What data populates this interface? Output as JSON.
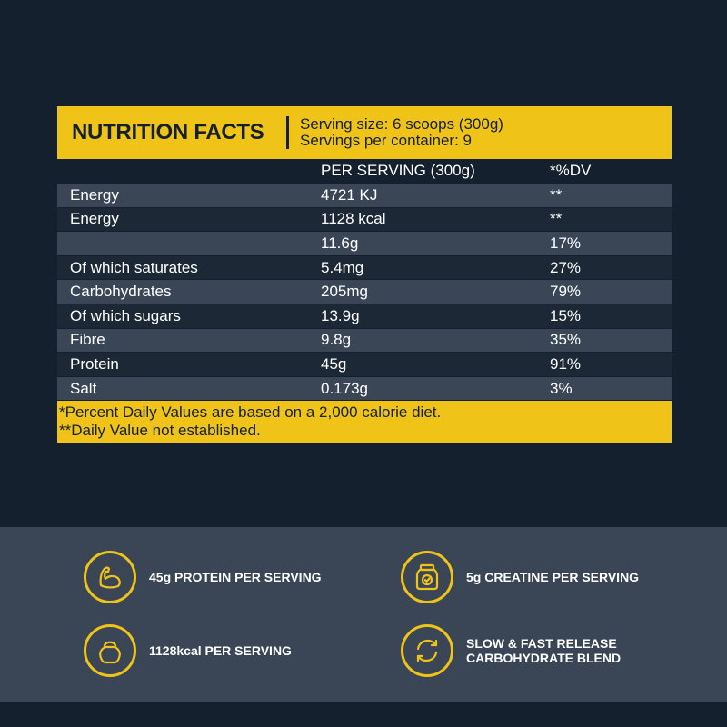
{
  "nutrition": {
    "title": "NUTRITION FACTS",
    "serving_size": "Serving size: 6 scoops (300g)",
    "servings_per_container": "Servings per container: 9",
    "col_per_serving": "PER SERVING (300g)",
    "col_dv": "*%DV",
    "rows": [
      {
        "label": "Energy",
        "value": "4721 KJ",
        "dv": "**"
      },
      {
        "label": "Energy",
        "value": "1128 kcal",
        "dv": "**"
      },
      {
        "label": "",
        "value": "11.6g",
        "dv": "17%"
      },
      {
        "label": "Of which saturates",
        "value": "5.4mg",
        "dv": "27%"
      },
      {
        "label": "Carbohydrates",
        "value": "205mg",
        "dv": "79%"
      },
      {
        "label": "Of which sugars",
        "value": "13.9g",
        "dv": "15%"
      },
      {
        "label": "Fibre",
        "value": "9.8g",
        "dv": "35%"
      },
      {
        "label": "Protein",
        "value": "45g",
        "dv": "91%"
      },
      {
        "label": "Salt",
        "value": "0.173g",
        "dv": "3%"
      }
    ],
    "footnote1": "*Percent Daily Values are based on a 2,000 calorie diet.",
    "footnote2": "**Daily Value not established."
  },
  "features": [
    {
      "icon": "muscle-arm-icon",
      "text": "45g PROTEIN PER SERVING"
    },
    {
      "icon": "supplement-jar-icon",
      "text": "5g CREATINE PER SERVING"
    },
    {
      "icon": "kettlebell-icon",
      "text": "1128kcal PER SERVING"
    },
    {
      "icon": "release-cycle-icon",
      "text_line1": "SLOW & FAST RELEASE",
      "text_line2": "CARBOHYDRATE BLEND"
    }
  ],
  "colors": {
    "background": "#14202e",
    "accent": "#f0c318",
    "row_alt": "#3a4656",
    "panel": "#3a4656"
  }
}
